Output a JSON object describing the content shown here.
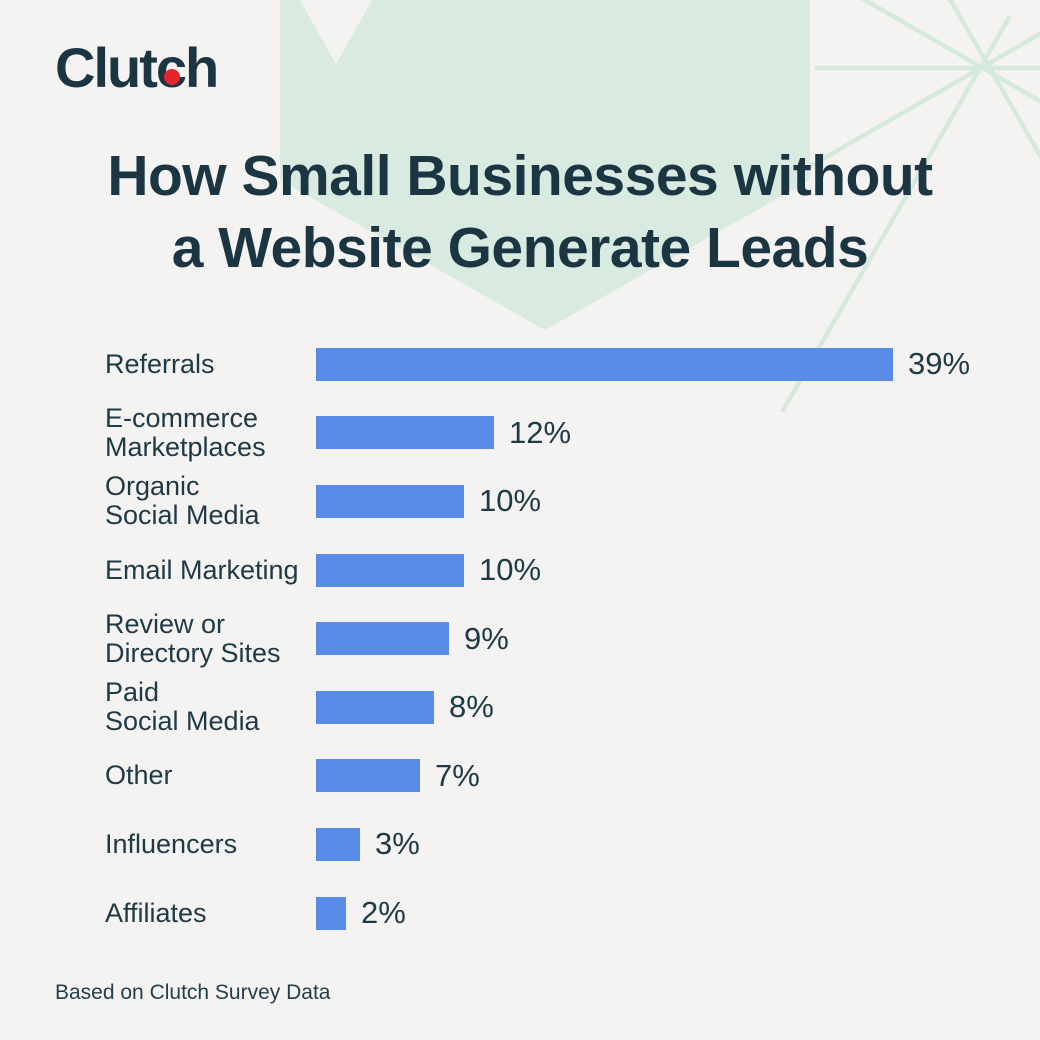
{
  "page": {
    "background_color": "#f4f3f1",
    "accent_blue": "#588ce8",
    "text_dark": "#1b3642",
    "deco_mint_fill": "#d9ebe1",
    "deco_mint_line": "#d5e9dd",
    "logo_dot_red": "#e6242b"
  },
  "logo": {
    "full": "Clutch",
    "part1": "Clut",
    "part2": "c",
    "part3": "h"
  },
  "title": {
    "line1": "How Small Businesses without",
    "line2": "a Website Generate Leads"
  },
  "chart_data": {
    "type": "bar",
    "orientation": "horizontal",
    "title": "How Small Businesses without a Website Generate Leads",
    "categories": [
      "Referrals",
      "E-commerce\nMarketplaces",
      "Organic\nSocial Media",
      "Email Marketing",
      "Review or\nDirectory Sites",
      "Paid\nSocial Media",
      "Other",
      "Influencers",
      "Affiliates"
    ],
    "values": [
      39,
      12,
      10,
      10,
      9,
      8,
      7,
      3,
      2
    ],
    "value_labels": [
      "39%",
      "12%",
      "10%",
      "10%",
      "9%",
      "8%",
      "7%",
      "3%",
      "2%"
    ],
    "unit": "percent",
    "xlim": [
      0,
      39
    ],
    "bar_color": "#588ce8",
    "grid": false,
    "legend": false
  },
  "footer": {
    "source": "Based on Clutch Survey Data"
  }
}
